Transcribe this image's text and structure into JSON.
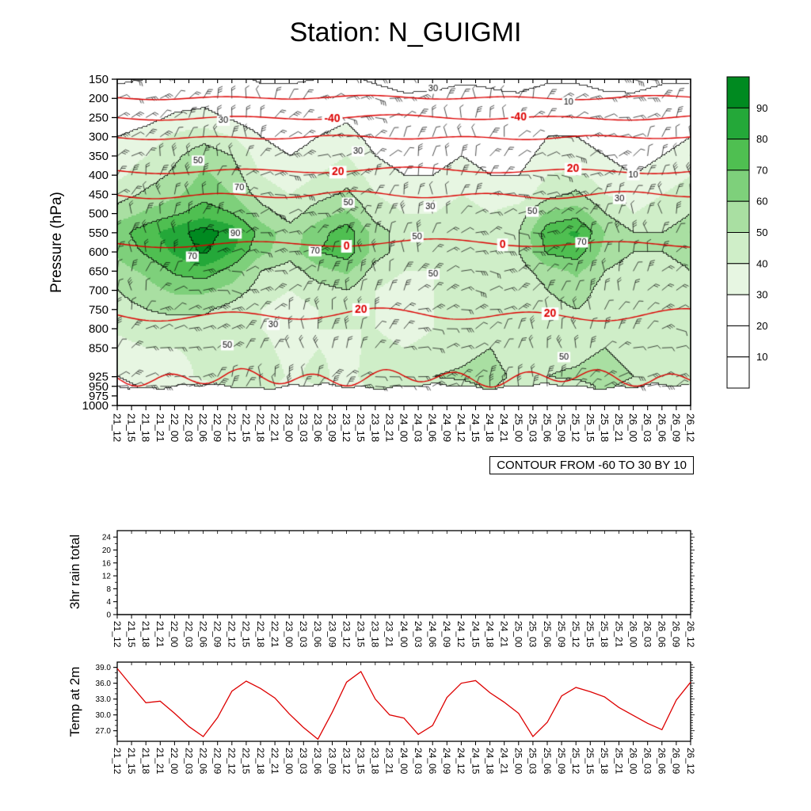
{
  "title": "Station: N_GUIGMI",
  "contour_note": "CONTOUR FROM -60 TO 30 BY 10",
  "time_labels": [
    "21_12",
    "21_15",
    "21_18",
    "21_21",
    "22_00",
    "22_03",
    "22_06",
    "22_09",
    "22_12",
    "22_15",
    "22_18",
    "22_21",
    "23_00",
    "23_03",
    "23_06",
    "23_09",
    "23_12",
    "23_15",
    "23_18",
    "23_21",
    "24_00",
    "24_03",
    "24_06",
    "24_09",
    "24_12",
    "24_15",
    "24_18",
    "24_21",
    "25_00",
    "25_03",
    "25_06",
    "25_09",
    "25_12",
    "25_15",
    "25_18",
    "25_21",
    "26_00",
    "26_03",
    "26_06",
    "26_09",
    "26_12"
  ],
  "colorbar": {
    "labels": [
      "90",
      "80",
      "70",
      "60",
      "50",
      "40",
      "30",
      "20",
      "10"
    ],
    "colors": [
      "#008a20",
      "#24a839",
      "#4fbf51",
      "#7ed07b",
      "#a9dfa2",
      "#cfeec8",
      "#e7f6e2",
      "#ffffff",
      "#ffffff",
      "#ffffff"
    ]
  },
  "chart_data": [
    {
      "type": "heatmap",
      "name": "humidity-time-pressure-section",
      "ylabel": "Pressure (hPa)",
      "y_ticks": [
        150,
        200,
        250,
        300,
        350,
        400,
        450,
        500,
        550,
        600,
        650,
        700,
        750,
        800,
        850,
        925,
        950,
        975,
        1000
      ],
      "y_range": [
        150,
        1000
      ],
      "x": [
        "21_12",
        "21_18",
        "22_00",
        "22_06",
        "22_12",
        "22_18",
        "23_00",
        "23_06",
        "23_12",
        "23_18",
        "24_00",
        "24_06",
        "24_12",
        "24_18",
        "25_00",
        "25_06",
        "25_12",
        "25_18",
        "26_00",
        "26_06",
        "26_12"
      ],
      "pressure_levels": [
        150,
        200,
        250,
        300,
        350,
        400,
        450,
        500,
        550,
        600,
        650,
        700,
        750,
        800,
        850,
        925,
        950
      ],
      "values": [
        [
          8,
          10,
          14,
          15,
          14,
          8,
          8,
          10,
          12,
          8,
          5,
          6,
          8,
          8,
          5,
          8,
          8,
          6,
          5,
          8,
          8
        ],
        [
          15,
          18,
          24,
          26,
          22,
          16,
          15,
          18,
          20,
          15,
          12,
          12,
          15,
          12,
          12,
          16,
          16,
          12,
          12,
          15,
          15
        ],
        [
          22,
          26,
          32,
          34,
          28,
          22,
          18,
          24,
          28,
          18,
          14,
          14,
          18,
          14,
          14,
          22,
          24,
          18,
          14,
          18,
          22
        ],
        [
          30,
          35,
          42,
          46,
          40,
          30,
          25,
          30,
          35,
          25,
          20,
          20,
          25,
          20,
          20,
          30,
          30,
          25,
          20,
          25,
          30
        ],
        [
          35,
          40,
          48,
          56,
          50,
          35,
          30,
          35,
          40,
          30,
          25,
          25,
          30,
          25,
          25,
          35,
          35,
          30,
          25,
          30,
          35
        ],
        [
          38,
          45,
          52,
          62,
          55,
          40,
          35,
          40,
          46,
          35,
          30,
          30,
          35,
          30,
          30,
          40,
          42,
          35,
          30,
          35,
          40
        ],
        [
          45,
          52,
          58,
          66,
          60,
          45,
          40,
          46,
          52,
          40,
          35,
          35,
          40,
          35,
          35,
          46,
          52,
          40,
          35,
          40,
          45
        ],
        [
          55,
          62,
          68,
          76,
          70,
          55,
          45,
          56,
          62,
          45,
          40,
          40,
          45,
          40,
          45,
          62,
          66,
          50,
          40,
          45,
          50
        ],
        [
          66,
          76,
          86,
          95,
          86,
          66,
          55,
          66,
          76,
          55,
          45,
          45,
          50,
          45,
          50,
          76,
          82,
          60,
          50,
          50,
          55
        ],
        [
          62,
          72,
          82,
          92,
          80,
          62,
          55,
          70,
          76,
          55,
          45,
          45,
          50,
          45,
          50,
          72,
          76,
          56,
          50,
          50,
          55
        ],
        [
          56,
          62,
          72,
          76,
          66,
          50,
          45,
          56,
          62,
          45,
          40,
          40,
          45,
          40,
          45,
          56,
          62,
          50,
          45,
          45,
          50
        ],
        [
          50,
          56,
          62,
          62,
          56,
          45,
          40,
          46,
          50,
          40,
          35,
          40,
          40,
          40,
          40,
          50,
          56,
          45,
          40,
          40,
          45
        ],
        [
          46,
          50,
          52,
          52,
          46,
          40,
          35,
          40,
          45,
          40,
          35,
          40,
          40,
          40,
          40,
          46,
          50,
          45,
          40,
          40,
          42
        ],
        [
          42,
          46,
          46,
          46,
          42,
          40,
          35,
          40,
          40,
          40,
          35,
          40,
          42,
          44,
          40,
          44,
          46,
          46,
          40,
          40,
          40
        ],
        [
          36,
          40,
          40,
          42,
          40,
          44,
          35,
          40,
          36,
          44,
          40,
          44,
          46,
          50,
          40,
          46,
          46,
          50,
          44,
          44,
          40
        ],
        [
          30,
          36,
          36,
          42,
          46,
          50,
          38,
          44,
          34,
          50,
          46,
          50,
          52,
          56,
          46,
          50,
          52,
          56,
          50,
          50,
          46
        ],
        [
          26,
          32,
          32,
          36,
          42,
          46,
          34,
          40,
          30,
          46,
          42,
          46,
          46,
          52,
          42,
          46,
          46,
          52,
          46,
          46,
          42
        ]
      ],
      "fill_levels": [
        10,
        20,
        30,
        40,
        50,
        60,
        70,
        80,
        90
      ],
      "line_contour_levels": [
        10,
        30,
        50,
        70,
        90
      ],
      "red_color": "#dd0000",
      "red_contours": [
        {
          "pressure": 198,
          "amp": 2,
          "wl": 180,
          "labels": []
        },
        {
          "pressure": 250,
          "amp": 2.5,
          "wl": 200,
          "labels": [
            {
              "x": 0.375,
              "text": "-40"
            },
            {
              "x": 0.7,
              "text": "-40"
            }
          ]
        },
        {
          "pressure": 302,
          "amp": 2,
          "wl": 160,
          "labels": []
        },
        {
          "pressure": 388,
          "amp": 3,
          "wl": 210,
          "labels": [
            {
              "x": 0.385,
              "text": "20"
            },
            {
              "x": 0.795,
              "text": "20"
            }
          ]
        },
        {
          "pressure": 452,
          "amp": 3.5,
          "wl": 170,
          "labels": []
        },
        {
          "pressure": 578,
          "amp": 4,
          "wl": 230,
          "labels": [
            {
              "x": 0.4,
              "text": "0"
            },
            {
              "x": 0.672,
              "text": "0"
            }
          ]
        },
        {
          "pressure": 764,
          "amp": 6,
          "wl": 190,
          "labels": [
            {
              "x": 0.425,
              "text": "20"
            },
            {
              "x": 0.755,
              "text": "20"
            }
          ]
        },
        {
          "pressure": 928,
          "amp": 8,
          "wl": 90,
          "labels": []
        }
      ],
      "black_labels": [
        {
          "x": 0.185,
          "p": 258,
          "text": "30"
        },
        {
          "x": 0.551,
          "p": 175,
          "text": "30"
        },
        {
          "x": 0.787,
          "p": 210,
          "text": "10"
        },
        {
          "x": 0.9,
          "p": 400,
          "text": "10"
        },
        {
          "x": 0.42,
          "p": 338,
          "text": "30"
        },
        {
          "x": 0.141,
          "p": 362,
          "text": "50"
        },
        {
          "x": 0.403,
          "p": 472,
          "text": "50"
        },
        {
          "x": 0.546,
          "p": 482,
          "text": "30"
        },
        {
          "x": 0.206,
          "p": 552,
          "text": "90"
        },
        {
          "x": 0.213,
          "p": 433,
          "text": "70"
        },
        {
          "x": 0.131,
          "p": 612,
          "text": "70"
        },
        {
          "x": 0.345,
          "p": 598,
          "text": "70"
        },
        {
          "x": 0.523,
          "p": 561,
          "text": "50"
        },
        {
          "x": 0.724,
          "p": 495,
          "text": "50"
        },
        {
          "x": 0.81,
          "p": 575,
          "text": "70"
        },
        {
          "x": 0.551,
          "p": 658,
          "text": "50"
        },
        {
          "x": 0.272,
          "p": 790,
          "text": "30"
        },
        {
          "x": 0.192,
          "p": 843,
          "text": "50"
        },
        {
          "x": 0.779,
          "p": 874,
          "text": "50"
        },
        {
          "x": 0.876,
          "p": 462,
          "text": "30"
        }
      ],
      "wind_barbs": {
        "present": true,
        "note": "wind barbs plotted at every 3-hourly time and pressure level"
      }
    },
    {
      "type": "line",
      "name": "rain-3hr-total",
      "ylabel": "3hr rain total",
      "y_ticks": [
        24,
        20,
        16,
        12,
        8,
        4,
        0
      ],
      "y_max": 26,
      "color": "#000000",
      "values": [
        0,
        0,
        0,
        0,
        0,
        0,
        0,
        0,
        0,
        0,
        0,
        0,
        0,
        0,
        0,
        0,
        0,
        0,
        0,
        0,
        0,
        0,
        0,
        0,
        0,
        0,
        0,
        0,
        0,
        0,
        0,
        0,
        0,
        0,
        0,
        0,
        0,
        0,
        0,
        0,
        0
      ]
    },
    {
      "type": "line",
      "name": "temp-at-2m",
      "ylabel": "Temp at 2m",
      "y_ticks": [
        39,
        36,
        33,
        30,
        27
      ],
      "y_tick_labels": [
        "39.0",
        "36.0",
        "33.0",
        "30.0",
        "27.0"
      ],
      "y_domain": [
        25,
        40
      ],
      "color": "#dd0000",
      "values": [
        38.8,
        35.5,
        32.3,
        32.6,
        30.3,
        27.8,
        25.9,
        29.5,
        34.5,
        36.4,
        35.0,
        33.2,
        30.2,
        27.6,
        25.4,
        30.5,
        36.2,
        38.2,
        33.0,
        30.0,
        29.4,
        26.3,
        28.0,
        33.3,
        36.0,
        36.5,
        34.2,
        32.4,
        30.3,
        25.9,
        28.6,
        33.6,
        35.2,
        34.4,
        33.4,
        31.4,
        29.9,
        28.4,
        27.2,
        32.8,
        36.2
      ]
    }
  ]
}
